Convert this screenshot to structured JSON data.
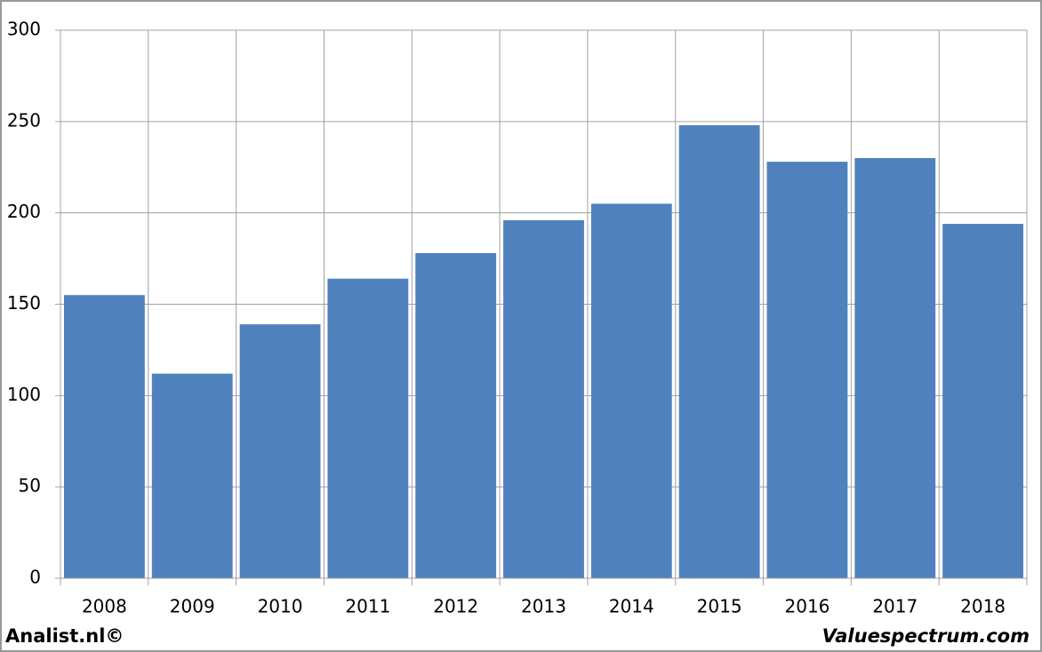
{
  "chart_data": {
    "type": "bar",
    "categories": [
      "2008",
      "2009",
      "2010",
      "2011",
      "2012",
      "2013",
      "2014",
      "2015",
      "2016",
      "2017",
      "2018"
    ],
    "values": [
      155,
      112,
      139,
      164,
      178,
      196,
      205,
      248,
      228,
      230,
      194
    ],
    "color": "#4f81bd",
    "ylim": [
      0,
      300
    ],
    "yticks": [
      0,
      50,
      100,
      150,
      200,
      250,
      300
    ],
    "grid": true,
    "annotations": [
      "Analist.nl©",
      "Valuespectrum.com"
    ]
  }
}
